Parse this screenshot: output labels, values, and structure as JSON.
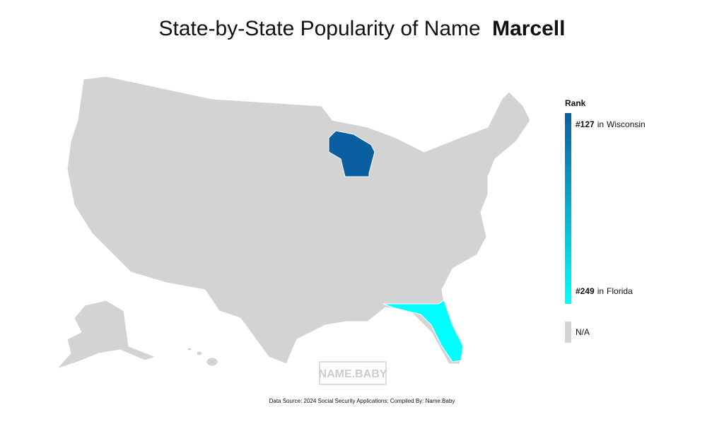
{
  "title": "State-by-State Popularity of Name",
  "name": "Marcell",
  "legend": {
    "title": "Rank",
    "connector": "in",
    "na_label": "N/A",
    "na_color": "#d3d3d3"
  },
  "states": [
    {
      "name": "Wisconsin",
      "rank": 127,
      "rank_label": "#127",
      "color": "#0a5fa0"
    },
    {
      "name": "Florida",
      "rank": 249,
      "rank_label": "#249",
      "color": "#00ffff"
    }
  ],
  "watermark": "NAME.BABY",
  "footnote": "Data Source: 2024 Social Security Applications; Compiled By: Name.Baby"
}
